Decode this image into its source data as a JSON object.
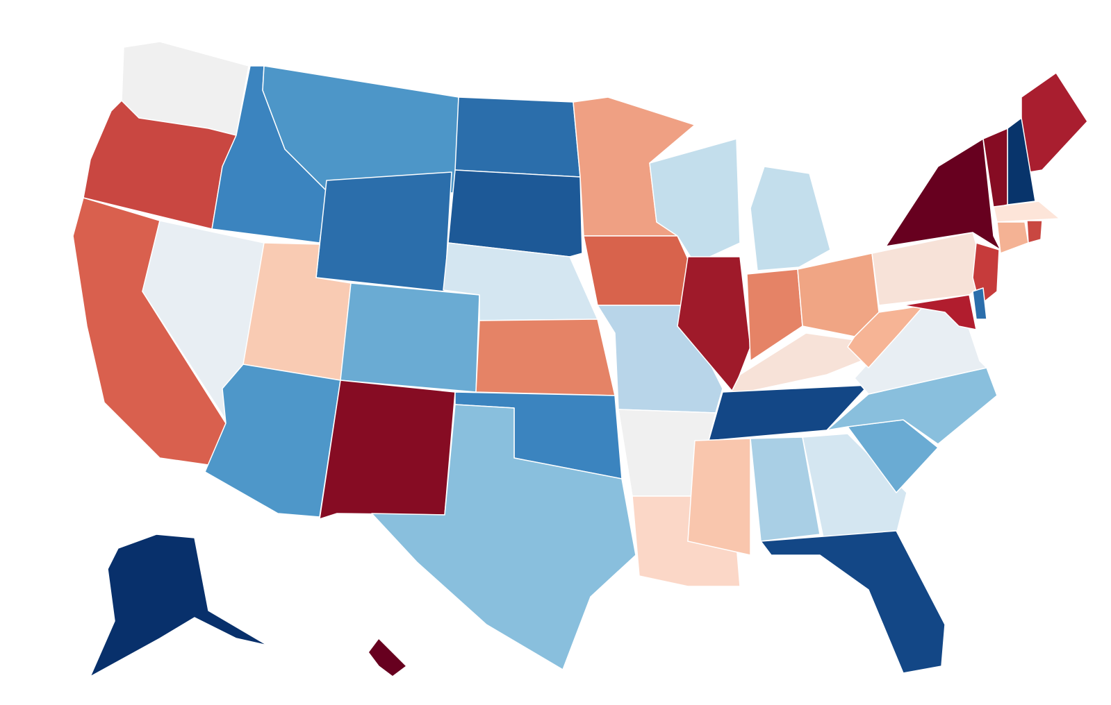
{
  "map": {
    "regions": [
      {
        "color": "#f0f0f0"
      },
      {
        "color": "#c94741"
      },
      {
        "color": "#d9604e"
      },
      {
        "color": "#e8eef3"
      },
      {
        "color": "#3b84bf"
      },
      {
        "color": "#4d96c8"
      },
      {
        "color": "#2b6eab"
      },
      {
        "color": "#f9cbb3"
      },
      {
        "color": "#6aabd3"
      },
      {
        "color": "#4e97c9"
      },
      {
        "color": "#860c23"
      },
      {
        "color": "#2b6eab"
      },
      {
        "color": "#1d5997"
      },
      {
        "color": "#d4e6f1"
      },
      {
        "color": "#e58366"
      },
      {
        "color": "#3b84bf"
      },
      {
        "color": "#89bfdd"
      },
      {
        "color": "#efa083"
      },
      {
        "color": "#d8634c"
      },
      {
        "color": "#b8d5e9"
      },
      {
        "color": "#f0f0f0"
      },
      {
        "color": "#fbd7c7"
      },
      {
        "color": "#c3deec"
      },
      {
        "color": "#9f1a2a"
      },
      {
        "color": "#c3deec"
      },
      {
        "color": "#e58366"
      },
      {
        "color": "#f0a584"
      },
      {
        "color": "#f7e2d8"
      },
      {
        "color": "#134786"
      },
      {
        "color": "#f9c6ad"
      },
      {
        "color": "#a9cfe5"
      },
      {
        "color": "#d4e6f1"
      },
      {
        "color": "#134786"
      },
      {
        "color": "#6aabd3"
      },
      {
        "color": "#89bfdd"
      },
      {
        "color": "#e8eef3"
      },
      {
        "color": "#f6b495"
      },
      {
        "color": "#f7e2d8"
      },
      {
        "color": "#67001f"
      },
      {
        "color": "#c63b3b"
      },
      {
        "color": "#2b6eab"
      },
      {
        "color": "#b11d2e"
      },
      {
        "color": "#a91e2f"
      },
      {
        "color": "#08346b"
      },
      {
        "color": "#860c23"
      },
      {
        "color": "#fde5d9"
      },
      {
        "color": "#f4b294"
      },
      {
        "color": "#c94741"
      },
      {
        "color": "#08306b"
      },
      {
        "color": "#67001f"
      }
    ]
  }
}
